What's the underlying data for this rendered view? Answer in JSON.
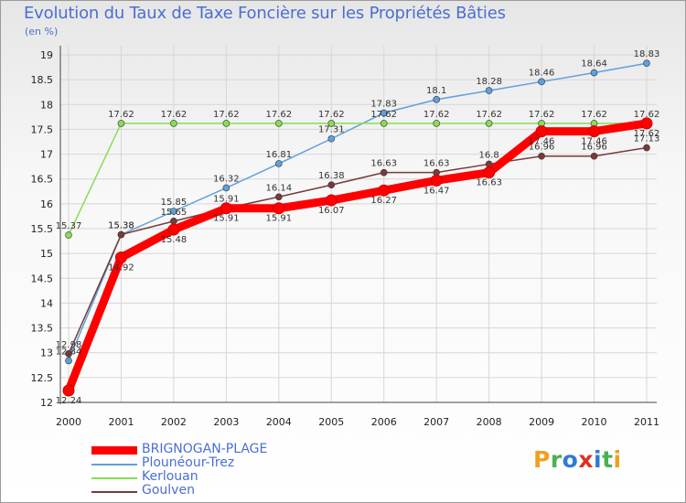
{
  "header": {
    "title": "Evolution du Taux de Taxe Foncière sur les Propriétés Bâties",
    "unit": "(en %)"
  },
  "brand": {
    "letters": [
      "P",
      "r",
      "o",
      "x",
      "i",
      "t",
      "i"
    ],
    "colors": [
      "#f0a020",
      "#4caf50",
      "#2e7bd6",
      "#e03020",
      "#2e7bd6",
      "#4caf50",
      "#f0a020"
    ]
  },
  "chart_data": {
    "type": "line",
    "title": "Evolution du Taux de Taxe Foncière sur les Propriétés Bâties",
    "ylabel": "(en %)",
    "xlabel": "",
    "categories": [
      "2000",
      "2001",
      "2002",
      "2003",
      "2004",
      "2005",
      "2006",
      "2007",
      "2008",
      "2009",
      "2010",
      "2011"
    ],
    "ylim": [
      12,
      19
    ],
    "yticks": [
      "12",
      "12.5",
      "13",
      "13.5",
      "14",
      "14.5",
      "15",
      "15.5",
      "16",
      "16.5",
      "17",
      "17.5",
      "18",
      "18.5",
      "19"
    ],
    "grid": true,
    "legend_position": "bottom-left",
    "series": [
      {
        "name": "BRIGNOGAN-PLAGE",
        "color": "#ff0000",
        "values": [
          12.24,
          14.92,
          15.48,
          15.91,
          15.91,
          16.07,
          16.27,
          16.47,
          16.63,
          17.46,
          17.46,
          17.62
        ],
        "labels": [
          "12.24",
          "14.92",
          "15.48",
          "15.91",
          "15.91",
          "16.07",
          "16.27",
          "16.47",
          "16.63",
          "17.46",
          "17.46",
          "17.62"
        ]
      },
      {
        "name": "Plounéour-Trez",
        "color": "#5fa0dc",
        "values": [
          12.84,
          15.38,
          15.85,
          16.32,
          16.81,
          17.31,
          17.83,
          18.1,
          18.28,
          18.46,
          18.64,
          18.83
        ],
        "labels": [
          "12.84",
          "15.38",
          "15.85",
          "16.32",
          "16.81",
          "17.31",
          "17.83",
          "18.1",
          "18.28",
          "18.46",
          "18.64",
          "18.83"
        ]
      },
      {
        "name": "Kerlouan",
        "color": "#88dd55",
        "values": [
          15.37,
          17.62,
          17.62,
          17.62,
          17.62,
          17.62,
          17.62,
          17.62,
          17.62,
          17.62,
          17.62,
          17.62
        ],
        "labels": [
          "15.37",
          "17.62",
          "17.62",
          "17.62",
          "17.62",
          "17.62",
          "17.62",
          "17.62",
          "17.62",
          "17.62",
          "17.62",
          "17.62"
        ]
      },
      {
        "name": "Goulven",
        "color": "#7a3a3a",
        "values": [
          12.98,
          15.38,
          15.65,
          15.91,
          16.14,
          16.38,
          16.63,
          16.63,
          16.8,
          16.96,
          16.96,
          17.13
        ],
        "labels": [
          "12.98",
          "15.38",
          "15.65",
          "15.91",
          "16.14",
          "16.38",
          "16.63",
          "16.63",
          "16.8",
          "16.96",
          "16.96",
          "17.13"
        ]
      }
    ]
  }
}
